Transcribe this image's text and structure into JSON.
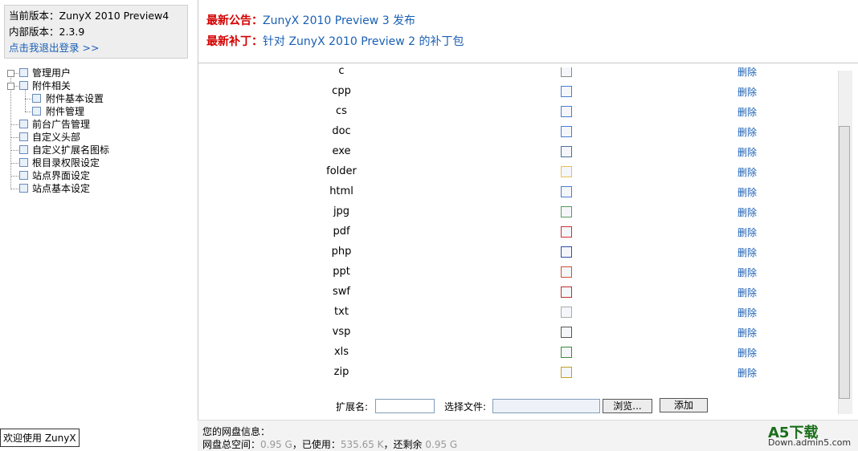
{
  "sidebar": {
    "info": {
      "version": "当前版本：ZunyX 2010 Preview4",
      "internal": "内部版本：2.3.9",
      "logout": "点击我退出登录 >>"
    },
    "tree": [
      {
        "label": "管理用户",
        "children": []
      },
      {
        "label": "附件相关",
        "children": [
          "附件基本设置",
          "附件管理"
        ]
      },
      {
        "label": "前台广告管理",
        "children": []
      },
      {
        "label": "自定义头部",
        "children": []
      },
      {
        "label": "自定义扩展名图标",
        "children": []
      },
      {
        "label": "根目录权限设定",
        "children": []
      },
      {
        "label": "站点界面设定",
        "children": []
      },
      {
        "label": "站点基本设定",
        "children": []
      }
    ],
    "welcome": "欢迎使用 ZunyX"
  },
  "header": {
    "notice": {
      "label": "最新公告：",
      "text": "ZunyX 2010 Preview 3 发布"
    },
    "patch": {
      "label": "最新补丁：",
      "text": "针对 ZunyX 2010 Preview 2 的补丁包"
    }
  },
  "table": {
    "action": "删除",
    "rows": [
      "c",
      "cpp",
      "cs",
      "doc",
      "exe",
      "folder",
      "html",
      "jpg",
      "pdf",
      "php",
      "ppt",
      "swf",
      "txt",
      "vsp",
      "xls",
      "zip"
    ]
  },
  "form": {
    "ext_label": "扩展名:",
    "file_label": "选择文件:",
    "browse": "浏览...",
    "add": "添加"
  },
  "footer": {
    "title": "您的网盘信息：",
    "total_label": "网盘总空间：",
    "total": "0.95 G",
    "used_label": "，已使用：",
    "used": "535.65 K",
    "left_label": "，还剩余",
    "left": "0.95 G"
  },
  "watermark": {
    "brand": "A5下载",
    "site": "Down.admin5.com"
  }
}
